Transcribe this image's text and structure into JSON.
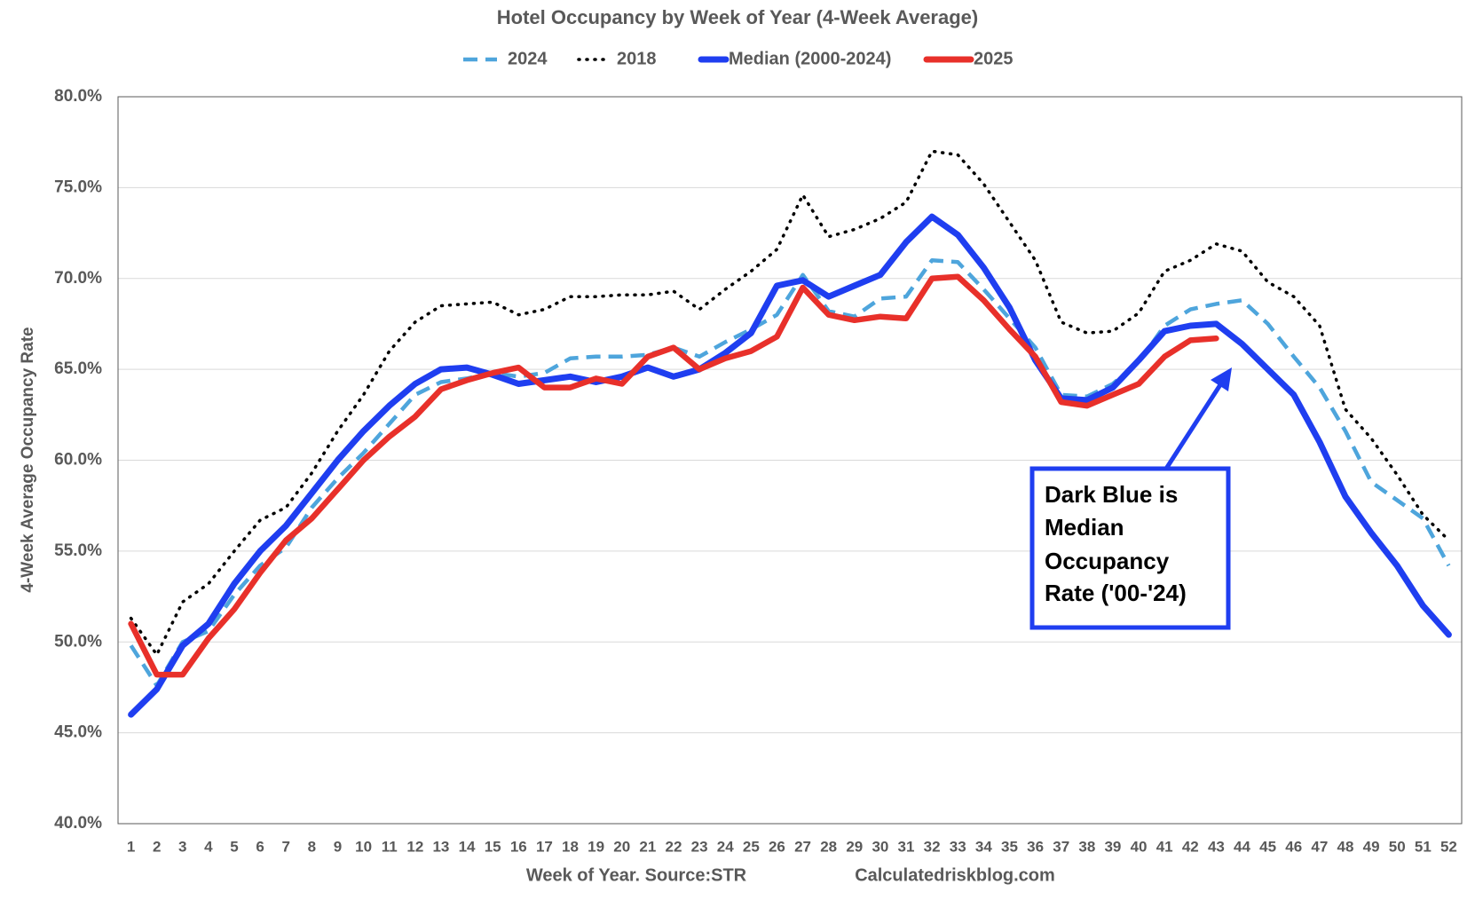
{
  "chart_data": {
    "type": "line",
    "title": "Hotel Occupancy by Week of Year (4-Week Average)",
    "y_label": "4-Week Average Occupancy Rate",
    "x_label": "Week of Year.  Source:STR",
    "source_note": "Calculatedriskblog.com",
    "annotation": [
      "Dark Blue is",
      "Median",
      "Occupancy",
      "Rate ('00-'24)"
    ],
    "categories": [
      "1",
      "2",
      "3",
      "4",
      "5",
      "6",
      "7",
      "8",
      "9",
      "10",
      "11",
      "12",
      "13",
      "14",
      "15",
      "16",
      "17",
      "18",
      "19",
      "20",
      "21",
      "22",
      "23",
      "24",
      "25",
      "26",
      "27",
      "28",
      "29",
      "30",
      "31",
      "32",
      "33",
      "34",
      "35",
      "36",
      "37",
      "38",
      "39",
      "40",
      "41",
      "42",
      "43",
      "44",
      "45",
      "46",
      "47",
      "48",
      "49",
      "50",
      "51",
      "52"
    ],
    "ylim": [
      40,
      80
    ],
    "yticks": [
      {
        "value": 40,
        "label": "40.0%"
      },
      {
        "value": 45,
        "label": "45.0%"
      },
      {
        "value": 50,
        "label": "50.0%"
      },
      {
        "value": 55,
        "label": "55.0%"
      },
      {
        "value": 60,
        "label": "60.0%"
      },
      {
        "value": 65,
        "label": "65.0%"
      },
      {
        "value": 70,
        "label": "70.0%"
      },
      {
        "value": 75,
        "label": "75.0%"
      },
      {
        "value": 80,
        "label": "80.0%"
      }
    ],
    "grid": true,
    "series": [
      {
        "name": "2024",
        "color": "#4ea5dc",
        "style": "dashed",
        "values": [
          49.8,
          47.6,
          50.0,
          50.6,
          52.6,
          54.2,
          55.2,
          57.4,
          59.0,
          60.4,
          62.0,
          63.6,
          64.3,
          64.5,
          64.8,
          64.6,
          64.8,
          65.6,
          65.7,
          65.7,
          65.8,
          66.2,
          65.7,
          66.5,
          67.2,
          68.0,
          70.2,
          68.2,
          67.9,
          68.9,
          69.0,
          71.0,
          70.9,
          69.4,
          67.8,
          66.2,
          63.6,
          63.5,
          64.2,
          65.4,
          67.4,
          68.3,
          68.6,
          68.8,
          67.5,
          65.7,
          64.0,
          61.6,
          58.8,
          57.8,
          56.8,
          54.2
        ]
      },
      {
        "name": "2018",
        "color": "#000000",
        "style": "dotted",
        "values": [
          51.3,
          49.3,
          52.2,
          53.2,
          55.0,
          56.7,
          57.4,
          59.3,
          61.6,
          63.6,
          66.0,
          67.6,
          68.5,
          68.6,
          68.7,
          68.0,
          68.3,
          69.0,
          69.0,
          69.1,
          69.1,
          69.3,
          68.3,
          69.4,
          70.4,
          71.6,
          74.6,
          72.3,
          72.7,
          73.3,
          74.2,
          77.0,
          76.8,
          75.2,
          73.1,
          71.0,
          67.6,
          67.0,
          67.1,
          68.1,
          70.4,
          71.0,
          71.9,
          71.5,
          69.8,
          69.0,
          67.4,
          62.8,
          61.2,
          59.2,
          57.0,
          55.6
        ]
      },
      {
        "name": "Median (2000-2024)",
        "color": "#1f3ef0",
        "style": "solid",
        "values": [
          46.0,
          47.4,
          49.8,
          51.0,
          53.2,
          55.0,
          56.4,
          58.2,
          60.0,
          61.6,
          63.0,
          64.2,
          65.0,
          65.1,
          64.7,
          64.2,
          64.4,
          64.6,
          64.3,
          64.6,
          65.1,
          64.6,
          65.0,
          65.9,
          67.0,
          69.6,
          69.9,
          69.0,
          69.6,
          70.2,
          72.0,
          73.4,
          72.4,
          70.6,
          68.4,
          65.5,
          63.4,
          63.3,
          64.0,
          65.5,
          67.1,
          67.4,
          67.5,
          66.4,
          65.0,
          63.6,
          61.0,
          58.0,
          56.0,
          54.2,
          52.0,
          50.4
        ]
      },
      {
        "name": "2025",
        "color": "#e8302a",
        "style": "solid",
        "values": [
          51.0,
          48.2,
          48.2,
          50.2,
          51.8,
          53.8,
          55.6,
          56.8,
          58.4,
          60.0,
          61.3,
          62.4,
          63.9,
          64.4,
          64.8,
          65.1,
          64.0,
          64.0,
          64.5,
          64.2,
          65.7,
          66.2,
          65.0,
          65.6,
          66.0,
          66.8,
          69.5,
          68.0,
          67.7,
          67.9,
          67.8,
          70.0,
          70.1,
          68.8,
          67.2,
          65.7,
          63.2,
          63.0,
          63.6,
          64.2,
          65.7,
          66.6,
          66.7,
          null,
          null,
          null,
          null,
          null,
          null,
          null,
          null,
          null
        ]
      }
    ]
  }
}
